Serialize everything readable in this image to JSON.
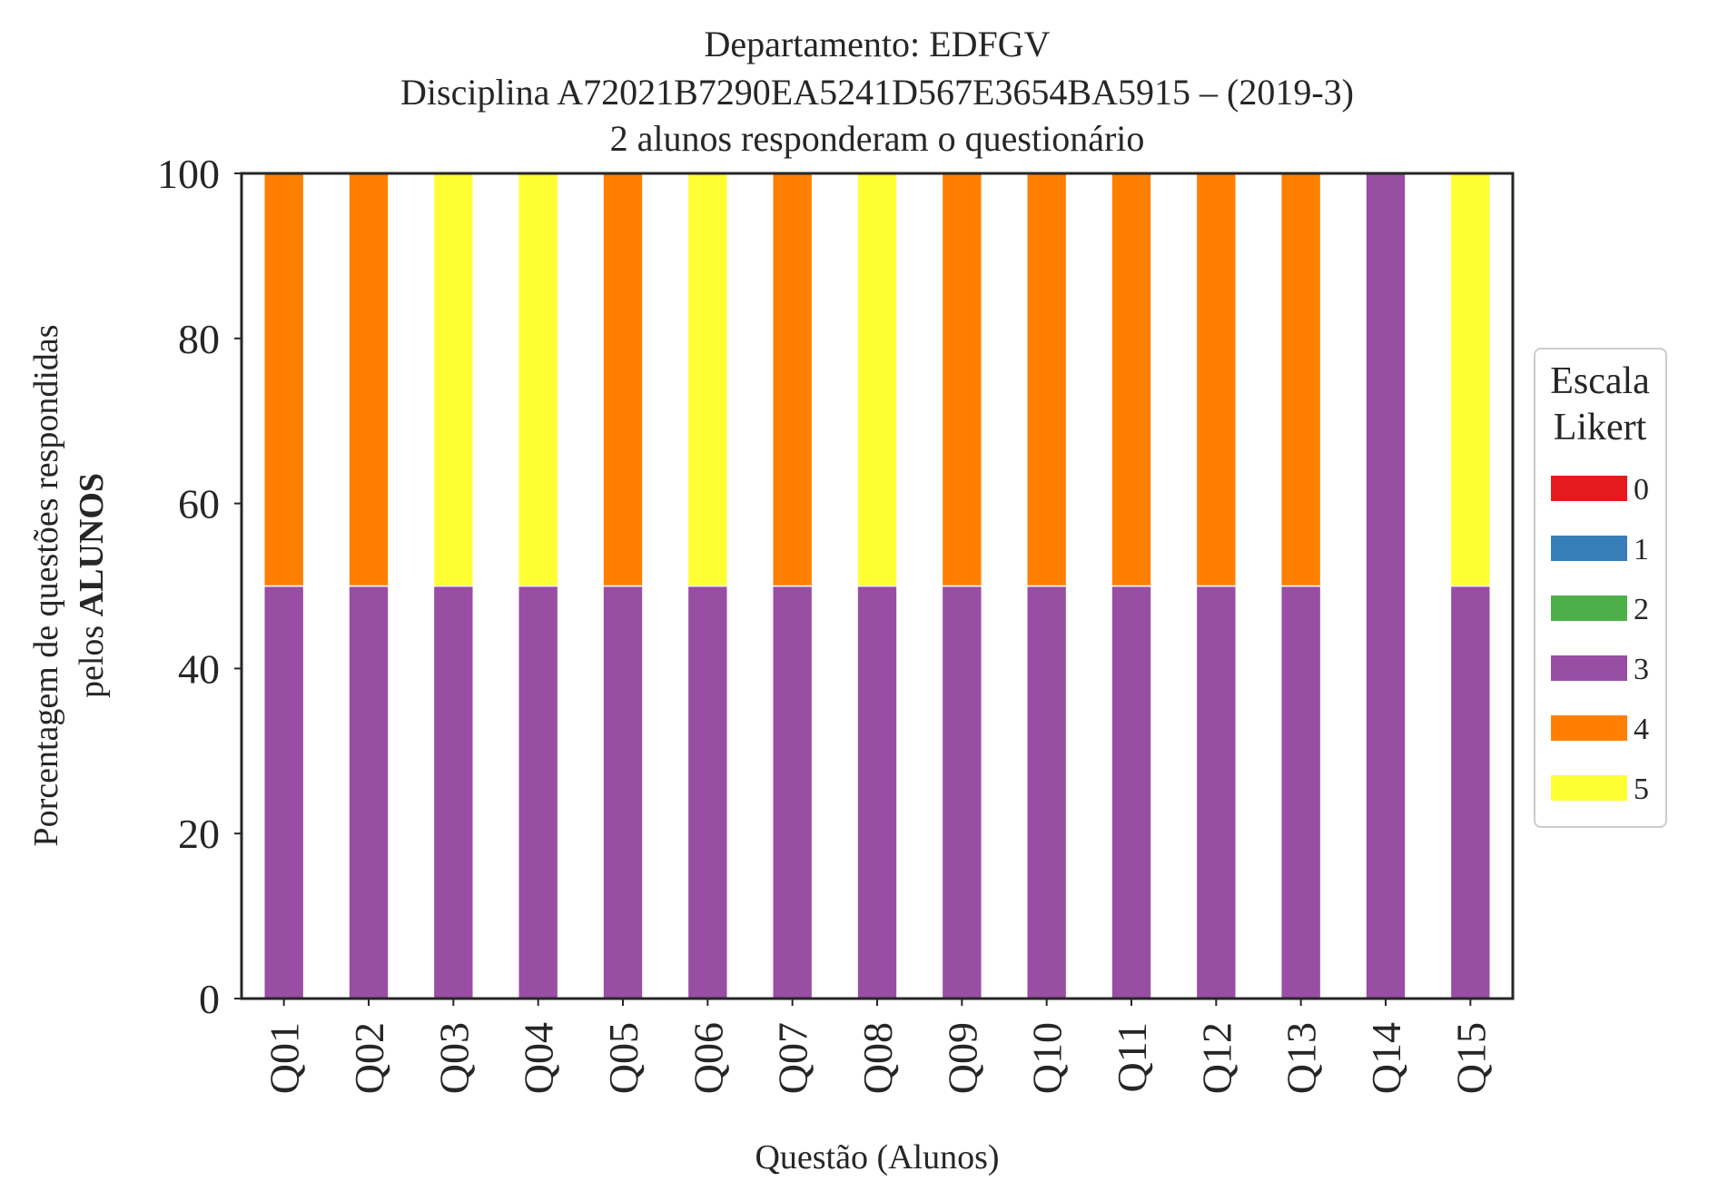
{
  "chart_data": {
    "type": "bar",
    "stacked": true,
    "title": [
      "Departamento: EDFGV",
      "Disciplina A72021B7290EA5241D567E3654BA5915 – (2019-3)",
      "2 alunos responderam o questionário"
    ],
    "xlabel": "Questão (Alunos)",
    "ylabel": "Porcentagem de questões respondidas",
    "ylabel_line2_prefix": "pelos ",
    "ylabel_line2_bold": "ALUNOS",
    "ylim": [
      0,
      100
    ],
    "yticks": [
      "0",
      "20",
      "40",
      "60",
      "80",
      "100"
    ],
    "grid": false,
    "categories": [
      "Q01",
      "Q02",
      "Q03",
      "Q04",
      "Q05",
      "Q06",
      "Q07",
      "Q08",
      "Q09",
      "Q10",
      "Q11",
      "Q12",
      "Q13",
      "Q14",
      "Q15"
    ],
    "legend": {
      "title": [
        "Escala",
        "Likert"
      ],
      "placement": "right"
    },
    "series": [
      {
        "name": "0",
        "color": "#e41a1c",
        "values": [
          0,
          0,
          0,
          0,
          0,
          0,
          0,
          0,
          0,
          0,
          0,
          0,
          0,
          0,
          0
        ]
      },
      {
        "name": "1",
        "color": "#377eb8",
        "values": [
          0,
          0,
          0,
          0,
          0,
          0,
          0,
          0,
          0,
          0,
          0,
          0,
          0,
          0,
          0
        ]
      },
      {
        "name": "2",
        "color": "#4daf4a",
        "values": [
          0,
          0,
          0,
          0,
          0,
          0,
          0,
          0,
          0,
          0,
          0,
          0,
          0,
          0,
          0
        ]
      },
      {
        "name": "3",
        "color": "#984ea3",
        "values": [
          50,
          50,
          50,
          50,
          50,
          50,
          50,
          50,
          50,
          50,
          50,
          50,
          50,
          100,
          50
        ]
      },
      {
        "name": "4",
        "color": "#ff7f00",
        "values": [
          50,
          50,
          0,
          0,
          50,
          0,
          50,
          0,
          50,
          50,
          50,
          50,
          50,
          0,
          0
        ]
      },
      {
        "name": "5",
        "color": "#ffff33",
        "values": [
          0,
          0,
          50,
          50,
          0,
          50,
          0,
          50,
          0,
          0,
          0,
          0,
          0,
          0,
          50
        ]
      }
    ]
  }
}
